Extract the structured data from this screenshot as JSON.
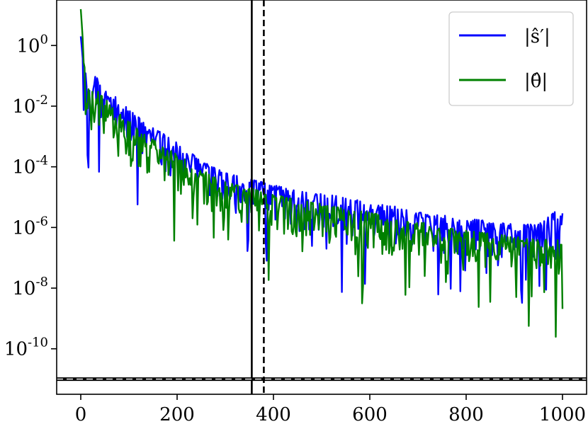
{
  "chart_data": {
    "type": "line",
    "title": "",
    "xlabel": "",
    "ylabel": "",
    "xlim": [
      -50,
      1050
    ],
    "ylim_log10": [
      -11.5,
      1.5
    ],
    "yscale": "log",
    "grid": false,
    "legend_position": "top-right",
    "x_ticks": [
      0,
      200,
      400,
      600,
      800,
      1000
    ],
    "x_tick_labels": [
      "0",
      "200",
      "400",
      "600",
      "800",
      "1000"
    ],
    "y_ticks_log10": [
      0,
      -2,
      -4,
      -6,
      -8,
      -10
    ],
    "y_tick_base": "10",
    "y_tick_exponents": [
      "0",
      "-2",
      "-4",
      "-6",
      "-8",
      "-10"
    ],
    "series": [
      {
        "name": "|ŝ′|",
        "color": "#0000ff",
        "envelope_log10": [
          [
            0,
            0.3
          ],
          [
            5,
            -0.6
          ],
          [
            10,
            -0.9
          ],
          [
            20,
            -1.3
          ],
          [
            30,
            -1.0
          ],
          [
            40,
            -1.2
          ],
          [
            60,
            -1.5
          ],
          [
            80,
            -1.8
          ],
          [
            100,
            -2.1
          ],
          [
            130,
            -2.5
          ],
          [
            160,
            -2.8
          ],
          [
            200,
            -3.2
          ],
          [
            250,
            -3.8
          ],
          [
            300,
            -4.2
          ],
          [
            350,
            -4.4
          ],
          [
            400,
            -4.6
          ],
          [
            450,
            -4.8
          ],
          [
            500,
            -4.9
          ],
          [
            550,
            -5.0
          ],
          [
            600,
            -5.2
          ],
          [
            650,
            -5.3
          ],
          [
            700,
            -5.5
          ],
          [
            750,
            -5.6
          ],
          [
            800,
            -5.7
          ],
          [
            850,
            -5.8
          ],
          [
            900,
            -5.9
          ],
          [
            950,
            -5.9
          ],
          [
            1000,
            -5.3
          ]
        ]
      },
      {
        "name": "|θ̂|",
        "color": "#008000",
        "envelope_log10": [
          [
            0,
            1.2
          ],
          [
            5,
            0.0
          ],
          [
            10,
            -1.2
          ],
          [
            20,
            -1.6
          ],
          [
            30,
            -1.4
          ],
          [
            40,
            -1.6
          ],
          [
            60,
            -1.9
          ],
          [
            80,
            -2.2
          ],
          [
            100,
            -2.5
          ],
          [
            130,
            -2.9
          ],
          [
            160,
            -3.2
          ],
          [
            200,
            -3.6
          ],
          [
            250,
            -4.1
          ],
          [
            300,
            -4.5
          ],
          [
            350,
            -4.7
          ],
          [
            400,
            -4.9
          ],
          [
            450,
            -5.1
          ],
          [
            500,
            -5.2
          ],
          [
            550,
            -5.4
          ],
          [
            600,
            -5.5
          ],
          [
            650,
            -5.7
          ],
          [
            700,
            -5.8
          ],
          [
            750,
            -6.0
          ],
          [
            800,
            -6.1
          ],
          [
            850,
            -6.2
          ],
          [
            900,
            -6.3
          ],
          [
            950,
            -6.4
          ],
          [
            1000,
            -6.4
          ]
        ]
      }
    ],
    "vertical_lines": [
      {
        "x": 355,
        "style": "solid",
        "color": "#000000"
      },
      {
        "x": 380,
        "style": "dashed",
        "color": "#000000"
      }
    ],
    "horizontal_lines": [
      {
        "y_log10": -11.0,
        "style": "solid",
        "color": "#000000"
      },
      {
        "y_log10": -11.0,
        "style": "dashed",
        "color": "#ffffff"
      }
    ]
  }
}
